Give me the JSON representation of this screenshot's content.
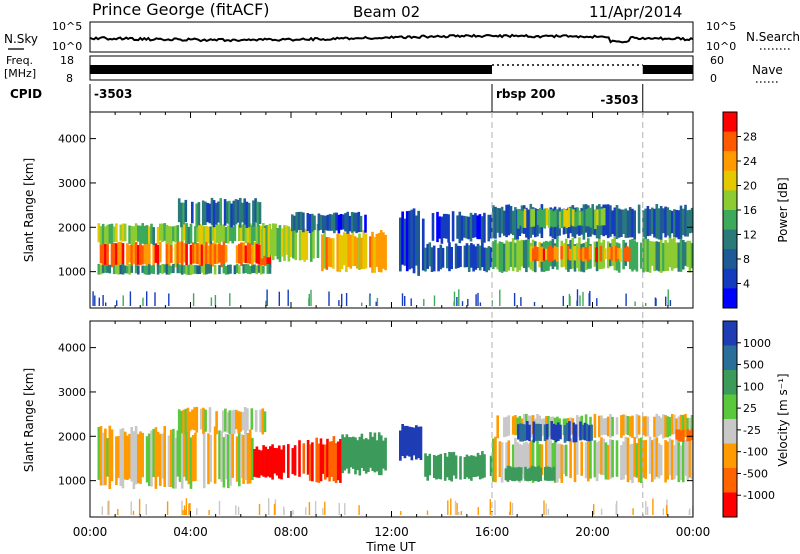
{
  "header": {
    "station": "Prince George (fitACF)",
    "beam": "Beam 02",
    "date": "11/Apr/2014"
  },
  "noise_panel": {
    "left_label": "N.Sky",
    "right_label": "N.Search",
    "left_ticks": [
      "10^5",
      "10^0"
    ],
    "right_ticks": [
      "10^5",
      "10^0"
    ]
  },
  "freq_panel": {
    "left_label_1": "Freq.",
    "left_label_2": "[MHz]",
    "right_label": "Nave",
    "left_ticks": [
      "18",
      "8"
    ],
    "right_ticks": [
      "60",
      "0"
    ]
  },
  "cpid": {
    "label": "CPID",
    "segments": [
      {
        "start_hour": 0,
        "end_hour": 16,
        "text": "-3503"
      },
      {
        "start_hour": 16,
        "end_hour": 22,
        "text": "rbsp 200"
      },
      {
        "start_hour": 22,
        "end_hour": 24,
        "text": ""
      }
    ],
    "extra_text": {
      "hour": 22,
      "text": "-3503"
    }
  },
  "power_panel": {
    "ylabel": "Slant Range [km]",
    "cbar_label": "Power [dB]",
    "cbar_ticks": [
      "28",
      "24",
      "20",
      "16",
      "12",
      "8",
      "4"
    ],
    "cbar_colors": [
      "#ff0000",
      "#ff5a00",
      "#ff9b00",
      "#e6c800",
      "#8ccc32",
      "#3caa5a",
      "#2a7a7a",
      "#1e5a96",
      "#143cbe",
      "#0000ff"
    ]
  },
  "velocity_panel": {
    "ylabel": "Slant Range [km]",
    "cbar_label": "Velocity [m s⁻¹]",
    "cbar_ticks": [
      "1000",
      "500",
      "100",
      "25",
      "-25",
      "-100",
      "-500",
      "-1000"
    ],
    "cbar_colors": [
      "#1e3cb4",
      "#2a6e9a",
      "#3c9a5a",
      "#5ac83c",
      "#c8c8c8",
      "#ff9b00",
      "#ff6400",
      "#ff0000"
    ]
  },
  "x_axis": {
    "title": "Time UT",
    "ticks": [
      "00:00",
      "04:00",
      "08:00",
      "12:00",
      "16:00",
      "20:00",
      "00:00"
    ]
  },
  "y_axis": {
    "ticks": [
      "1000",
      "2000",
      "3000",
      "4000"
    ]
  },
  "chart_data": {
    "type": "heatmap",
    "title": "Prince George (fitACF)  Beam 02  11/Apr/2014",
    "xlabel": "Time UT",
    "ylabel": "Slant Range [km]",
    "xlim_hours": [
      0,
      24
    ],
    "ylim_km": [
      180,
      4600
    ],
    "mode_change_hours": [
      16,
      22
    ],
    "panels": [
      {
        "name": "Power [dB]",
        "colorscale_ticks": [
          4,
          8,
          12,
          16,
          20,
          24,
          28
        ],
        "regions": [
          {
            "t0": 0.3,
            "t1": 7.2,
            "r0": 1150,
            "r1": 1650,
            "value": 26
          },
          {
            "t0": 0.3,
            "t1": 7.2,
            "r0": 1650,
            "r1": 2050,
            "value": 17
          },
          {
            "t0": 0.3,
            "t1": 7.2,
            "r0": 950,
            "r1": 1150,
            "value": 14
          },
          {
            "t0": 3.5,
            "t1": 6.8,
            "r0": 2050,
            "r1": 2600,
            "value": 11
          },
          {
            "t0": 6.8,
            "t1": 9.2,
            "r0": 1300,
            "r1": 2000,
            "value": 18
          },
          {
            "t0": 9.2,
            "t1": 11.8,
            "r0": 1050,
            "r1": 1850,
            "value": 22
          },
          {
            "t0": 8.0,
            "t1": 11.0,
            "r0": 1900,
            "r1": 2300,
            "value": 8
          },
          {
            "t0": 12.3,
            "t1": 13.3,
            "r0": 1000,
            "r1": 2300,
            "value": 6
          },
          {
            "t0": 13.3,
            "t1": 16.0,
            "r0": 1050,
            "r1": 1600,
            "value": 9
          },
          {
            "t0": 13.6,
            "t1": 16.0,
            "r0": 1700,
            "r1": 2300,
            "value": 7
          },
          {
            "t0": 16.0,
            "t1": 24.0,
            "r0": 1050,
            "r1": 1700,
            "value": 16
          },
          {
            "t0": 17.5,
            "t1": 21.5,
            "r0": 1250,
            "r1": 1550,
            "value": 25
          },
          {
            "t0": 16.0,
            "t1": 24.0,
            "r0": 1800,
            "r1": 2450,
            "value": 9
          },
          {
            "t0": 17.0,
            "t1": 20.5,
            "r0": 2000,
            "r1": 2400,
            "value": 17
          }
        ]
      },
      {
        "name": "Velocity [m s-1]",
        "colorscale_ticks": [
          -1000,
          -500,
          -100,
          -25,
          25,
          100,
          500,
          1000
        ],
        "regions": [
          {
            "t0": 0.3,
            "t1": 6.5,
            "r0": 950,
            "r1": 2100,
            "value": 0
          },
          {
            "t0": 3.5,
            "t1": 7.0,
            "r0": 2100,
            "r1": 2600,
            "value": 0
          },
          {
            "t0": 6.5,
            "t1": 8.2,
            "r0": 1100,
            "r1": 1750,
            "value": -1100
          },
          {
            "t0": 8.2,
            "t1": 10.0,
            "r0": 1050,
            "r1": 1900,
            "value": -500
          },
          {
            "t0": 10.0,
            "t1": 11.8,
            "r0": 1200,
            "r1": 2000,
            "value": 200
          },
          {
            "t0": 12.3,
            "t1": 13.3,
            "r0": 1500,
            "r1": 2200,
            "value": 800
          },
          {
            "t0": 13.3,
            "t1": 16.0,
            "r0": 1050,
            "r1": 1600,
            "value": 150
          },
          {
            "t0": 16.0,
            "t1": 24.0,
            "r0": 1050,
            "r1": 1900,
            "value": 0
          },
          {
            "t0": 16.0,
            "t1": 24.0,
            "r0": 2000,
            "r1": 2450,
            "value": 0
          },
          {
            "t0": 17.0,
            "t1": 20.0,
            "r0": 1900,
            "r1": 2300,
            "value": 700
          },
          {
            "t0": 16.5,
            "t1": 18.5,
            "r0": 1000,
            "r1": 1300,
            "value": 120
          },
          {
            "t0": 23.3,
            "t1": 24.0,
            "r0": 1900,
            "r1": 2150,
            "value": -150
          }
        ]
      }
    ]
  }
}
